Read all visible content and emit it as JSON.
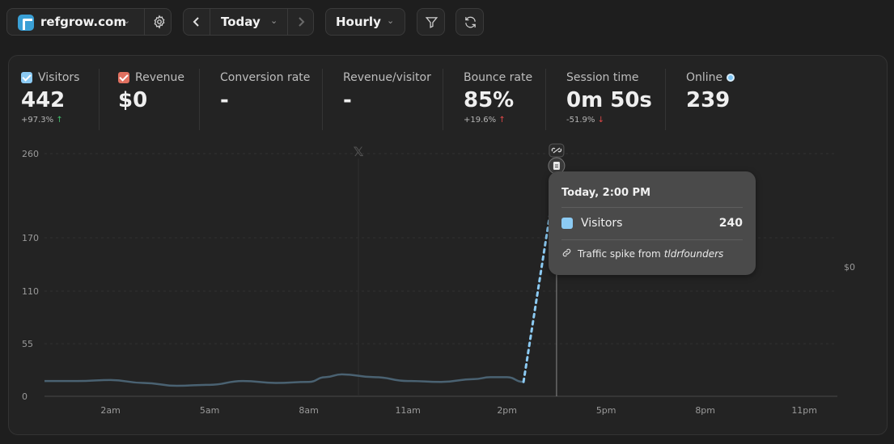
{
  "toolbar": {
    "site_name": "refgrow.com",
    "period_label": "Today",
    "granularity_label": "Hourly",
    "icons": [
      "settings-icon",
      "chevron-left-icon",
      "chevron-right-icon",
      "filter-icon",
      "refresh-icon"
    ]
  },
  "metrics": {
    "visitors": {
      "label": "Visitors",
      "value": "442",
      "delta": "+97.3%"
    },
    "revenue": {
      "label": "Revenue",
      "value": "$0"
    },
    "conversion": {
      "label": "Conversion rate",
      "value": "-"
    },
    "rev_per_visitor": {
      "label": "Revenue/visitor",
      "value": "-"
    },
    "bounce": {
      "label": "Bounce rate",
      "value": "85%",
      "delta": "+19.6%"
    },
    "session": {
      "label": "Session time",
      "value": "0m 50s",
      "delta": "-51.9%"
    },
    "online": {
      "label": "Online",
      "value": "239"
    }
  },
  "colors": {
    "visitors_series": "#8ccbf4",
    "history_line": "#4a6272",
    "up": "#3fbf6a",
    "down": "#e24848"
  },
  "chart_data": {
    "type": "line",
    "y_ticks": [
      "260",
      "170",
      "110",
      "55",
      "0"
    ],
    "y_values": [
      260,
      170,
      110,
      55,
      0
    ],
    "ylim": [
      0,
      260
    ],
    "right_axis_label": "$0",
    "x_ticks": [
      "2am",
      "5am",
      "8am",
      "11am",
      "2pm",
      "5pm",
      "8pm",
      "11pm"
    ],
    "x_tick_hours": [
      2,
      5,
      8,
      11,
      14,
      17,
      20,
      23
    ],
    "xlim": [
      0,
      24
    ],
    "series": [
      {
        "name": "Visitors",
        "points": [
          [
            0,
            16
          ],
          [
            1,
            16
          ],
          [
            2,
            17
          ],
          [
            3,
            14
          ],
          [
            4,
            11
          ],
          [
            5,
            12
          ],
          [
            6,
            16
          ],
          [
            7,
            14
          ],
          [
            8,
            15
          ],
          [
            8.5,
            20
          ],
          [
            9,
            23
          ],
          [
            10,
            20
          ],
          [
            11,
            16
          ],
          [
            12,
            15
          ],
          [
            13,
            18
          ],
          [
            13.5,
            20
          ],
          [
            14,
            20
          ],
          [
            14.5,
            15
          ]
        ],
        "projection": [
          [
            14.5,
            15
          ],
          [
            15.5,
            240
          ]
        ]
      }
    ],
    "marker_hour": 15.5,
    "tooltip": {
      "title": "Today, 2:00 PM",
      "series": "Visitors",
      "value": "240",
      "note_prefix": "Traffic spike from",
      "note_source": "tldrfounders"
    },
    "annotations": [
      "x-logo-icon",
      "link-icon",
      "document-icon"
    ]
  }
}
